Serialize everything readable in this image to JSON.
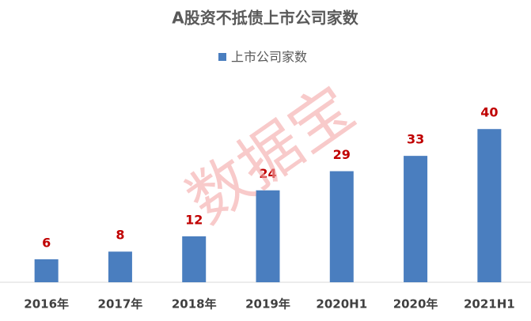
{
  "chart_data": {
    "type": "bar",
    "title": "A股资不抵债上市公司家数",
    "categories": [
      "2016年",
      "2017年",
      "2018年",
      "2019年",
      "2020H1",
      "2020年",
      "2021H1"
    ],
    "series": [
      {
        "name": "上市公司家数",
        "color": "#4a7ebf",
        "values": [
          6,
          8,
          12,
          24,
          29,
          33,
          40
        ]
      }
    ],
    "ylim": [
      0,
      45
    ],
    "legend": "top",
    "value_label_color": "#c00000",
    "watermark": "数据宝"
  }
}
